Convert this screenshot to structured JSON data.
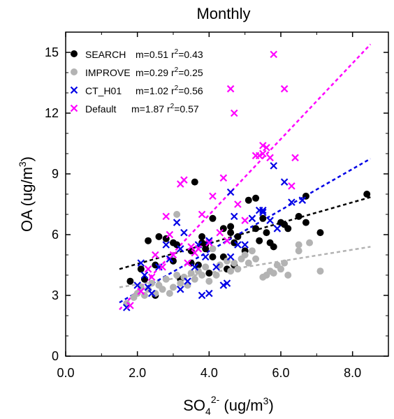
{
  "chart_data": {
    "type": "scatter",
    "title": "Monthly",
    "xlabel": {
      "base": "SO",
      "sub": "4",
      "sup": "2-",
      "unit": " (ug/m",
      "unit_sup": "3",
      "unit_end": ")"
    },
    "ylabel": {
      "base": "OA (ug/m",
      "sup": "3",
      "end": ")"
    },
    "xlim": [
      0,
      9
    ],
    "ylim": [
      0,
      16
    ],
    "xticks": [
      0,
      2,
      4,
      6,
      8
    ],
    "xtick_labels": [
      "0.0",
      "2.0",
      "4.0",
      "6.0",
      "8.0"
    ],
    "yticks": [
      0,
      3,
      6,
      9,
      12,
      15
    ],
    "ytick_labels": [
      "0",
      "3",
      "6",
      "9",
      "12",
      "15"
    ],
    "grid": false,
    "legend_position": "top-left",
    "series": [
      {
        "name": "SEARCH",
        "stats": {
          "m": "m=0.51",
          "r2_pre": "r",
          "r2_sup": "2",
          "r2_val": "=0.43"
        },
        "marker": "circle",
        "color": "#000000",
        "fit_color": "#000000",
        "fit": {
          "x0": 1.5,
          "y0": 4.3,
          "x1": 8.5,
          "y1": 7.85
        },
        "points": [
          [
            1.8,
            3.7
          ],
          [
            2.1,
            4.3
          ],
          [
            2.2,
            3.8
          ],
          [
            2.3,
            5.7
          ],
          [
            2.5,
            4.5
          ],
          [
            2.6,
            5.9
          ],
          [
            2.5,
            3.0
          ],
          [
            2.8,
            5.8
          ],
          [
            3.0,
            4.7
          ],
          [
            3.1,
            5.5
          ],
          [
            3.0,
            5.6
          ],
          [
            3.2,
            3.8
          ],
          [
            3.5,
            5.2
          ],
          [
            3.5,
            4.6
          ],
          [
            3.6,
            8.6
          ],
          [
            3.7,
            4.5
          ],
          [
            3.8,
            5.9
          ],
          [
            3.8,
            5.6
          ],
          [
            3.9,
            5.5
          ],
          [
            3.9,
            5.3
          ],
          [
            4.0,
            4.1
          ],
          [
            4.1,
            6.8
          ],
          [
            4.1,
            4.9
          ],
          [
            4.4,
            6.3
          ],
          [
            4.4,
            4.9
          ],
          [
            4.5,
            4.3
          ],
          [
            4.6,
            6.1
          ],
          [
            4.6,
            6.4
          ],
          [
            4.7,
            5.6
          ],
          [
            4.7,
            4.5
          ],
          [
            4.8,
            5.9
          ],
          [
            5.0,
            5.2
          ],
          [
            5.1,
            7.7
          ],
          [
            5.3,
            7.8
          ],
          [
            5.3,
            6.3
          ],
          [
            5.4,
            5.7
          ],
          [
            5.5,
            6.8
          ],
          [
            5.6,
            6.1
          ],
          [
            5.7,
            5.6
          ],
          [
            5.8,
            5.4
          ],
          [
            6.0,
            6.6
          ],
          [
            6.1,
            6.5
          ],
          [
            6.2,
            6.3
          ],
          [
            6.5,
            6.9
          ],
          [
            6.7,
            6.6
          ],
          [
            6.7,
            7.9
          ],
          [
            7.1,
            6.1
          ],
          [
            8.4,
            8.0
          ]
        ]
      },
      {
        "name": "IMPROVE",
        "stats": {
          "m": "m=0.29",
          "r2_pre": "r",
          "r2_sup": "2",
          "r2_val": "=0.25"
        },
        "marker": "circle",
        "color": "#b3b3b3",
        "fit_color": "#b3b3b3",
        "fit": {
          "x0": 1.5,
          "y0": 3.4,
          "x1": 8.5,
          "y1": 5.4
        },
        "points": [
          [
            1.7,
            2.6
          ],
          [
            1.9,
            2.9
          ],
          [
            2.0,
            3.1
          ],
          [
            2.1,
            3.4
          ],
          [
            2.2,
            3.0
          ],
          [
            2.3,
            3.3
          ],
          [
            2.4,
            3.6
          ],
          [
            2.5,
            3.1
          ],
          [
            2.6,
            3.5
          ],
          [
            2.7,
            3.3
          ],
          [
            2.8,
            3.8
          ],
          [
            2.9,
            3.1
          ],
          [
            3.0,
            3.4
          ],
          [
            3.1,
            4.0
          ],
          [
            3.1,
            7.0
          ],
          [
            3.2,
            3.6
          ],
          [
            3.3,
            3.9
          ],
          [
            3.4,
            3.5
          ],
          [
            3.5,
            4.1
          ],
          [
            3.6,
            3.8
          ],
          [
            3.7,
            4.2
          ],
          [
            3.8,
            4.0
          ],
          [
            3.9,
            4.4
          ],
          [
            4.0,
            3.7
          ],
          [
            4.1,
            5.3
          ],
          [
            4.2,
            4.0
          ],
          [
            4.3,
            4.5
          ],
          [
            4.5,
            4.7
          ],
          [
            4.6,
            4.2
          ],
          [
            4.7,
            4.6
          ],
          [
            4.8,
            4.3
          ],
          [
            4.9,
            4.8
          ],
          [
            5.0,
            5.0
          ],
          [
            5.1,
            4.6
          ],
          [
            5.2,
            5.2
          ],
          [
            5.3,
            4.8
          ],
          [
            5.5,
            3.9
          ],
          [
            5.6,
            4.0
          ],
          [
            5.7,
            4.2
          ],
          [
            5.8,
            4.1
          ],
          [
            5.9,
            4.5
          ],
          [
            6.0,
            4.3
          ],
          [
            6.1,
            4.6
          ],
          [
            6.2,
            4.0
          ],
          [
            6.5,
            5.2
          ],
          [
            6.5,
            5.5
          ],
          [
            6.8,
            5.6
          ],
          [
            7.1,
            4.2
          ]
        ]
      },
      {
        "name": "CT_H01",
        "stats": {
          "m": "m=1.02",
          "r2_pre": "r",
          "r2_sup": "2",
          "r2_val": "=0.56"
        },
        "marker": "x",
        "color": "#0000e6",
        "fit_color": "#0000e6",
        "fit": {
          "x0": 1.5,
          "y0": 2.65,
          "x1": 8.5,
          "y1": 9.75
        },
        "points": [
          [
            1.7,
            2.4
          ],
          [
            2.0,
            3.5
          ],
          [
            2.1,
            4.6
          ],
          [
            2.2,
            4.0
          ],
          [
            2.3,
            3.4
          ],
          [
            2.4,
            3.1
          ],
          [
            2.6,
            4.4
          ],
          [
            2.8,
            5.5
          ],
          [
            2.9,
            4.8
          ],
          [
            3.1,
            6.6
          ],
          [
            3.2,
            5.3
          ],
          [
            3.3,
            6.1
          ],
          [
            3.2,
            3.3
          ],
          [
            3.4,
            3.7
          ],
          [
            3.6,
            4.4
          ],
          [
            3.7,
            5.5
          ],
          [
            3.8,
            3.0
          ],
          [
            3.9,
            4.9
          ],
          [
            4.0,
            3.1
          ],
          [
            4.0,
            5.7
          ],
          [
            4.2,
            4.4
          ],
          [
            4.4,
            3.5
          ],
          [
            4.5,
            3.6
          ],
          [
            4.6,
            4.9
          ],
          [
            4.6,
            8.1
          ],
          [
            4.7,
            6.9
          ],
          [
            4.8,
            5.5
          ],
          [
            5.0,
            5.5
          ],
          [
            5.2,
            6.8
          ],
          [
            5.4,
            7.2
          ],
          [
            5.5,
            7.2
          ],
          [
            5.5,
            7.1
          ],
          [
            5.7,
            6.7
          ],
          [
            5.8,
            9.4
          ],
          [
            5.9,
            6.3
          ],
          [
            6.1,
            8.6
          ],
          [
            6.3,
            7.6
          ],
          [
            6.6,
            7.7
          ]
        ]
      },
      {
        "name": "Default",
        "stats": {
          "m": "m=1.87",
          "r2_pre": "r",
          "r2_sup": "2",
          "r2_val": "=0.57"
        },
        "marker": "x",
        "color": "#ff00ff",
        "fit_color": "#ff00ff",
        "fit": {
          "x0": 1.5,
          "y0": 2.3,
          "x1": 8.5,
          "y1": 15.4
        },
        "points": [
          [
            1.8,
            2.5
          ],
          [
            2.1,
            3.2
          ],
          [
            2.3,
            4.3
          ],
          [
            2.4,
            3.9
          ],
          [
            2.5,
            5.0
          ],
          [
            2.7,
            4.4
          ],
          [
            2.8,
            6.9
          ],
          [
            2.9,
            6.0
          ],
          [
            3.0,
            5.0
          ],
          [
            3.2,
            8.5
          ],
          [
            3.3,
            8.7
          ],
          [
            3.4,
            4.6
          ],
          [
            3.5,
            5.4
          ],
          [
            3.6,
            5.1
          ],
          [
            3.7,
            5.3
          ],
          [
            3.8,
            7.0
          ],
          [
            4.0,
            5.6
          ],
          [
            4.1,
            7.9
          ],
          [
            4.3,
            6.1
          ],
          [
            4.4,
            8.8
          ],
          [
            4.5,
            5.7
          ],
          [
            4.6,
            13.2
          ],
          [
            4.7,
            12.0
          ],
          [
            4.8,
            7.5
          ],
          [
            5.0,
            6.7
          ],
          [
            5.3,
            9.9
          ],
          [
            5.4,
            9.9
          ],
          [
            5.5,
            10.4
          ],
          [
            5.5,
            10.0
          ],
          [
            5.6,
            10.3
          ],
          [
            5.7,
            9.8
          ],
          [
            5.8,
            14.9
          ],
          [
            6.1,
            13.2
          ],
          [
            6.3,
            8.4
          ],
          [
            6.4,
            9.8
          ]
        ]
      }
    ]
  }
}
